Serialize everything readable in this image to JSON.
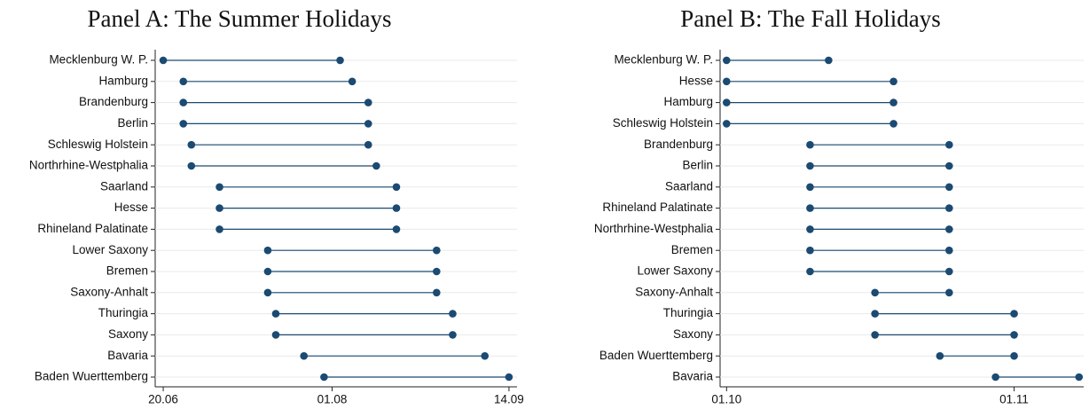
{
  "chart_data": [
    {
      "type": "dumbbell",
      "title": "Panel A: The Summer Holidays",
      "categories": [
        "Mecklenburg W. P.",
        "Hamburg",
        "Brandenburg",
        "Berlin",
        "Schleswig Holstein",
        "Northrhine-Westphalia",
        "Saarland",
        "Hesse",
        "Rhineland Palatinate",
        "Lower Saxony",
        "Bremen",
        "Saxony-Anhalt",
        "Thuringia",
        "Saxony",
        "Bavaria",
        "Baden Wuerttemberg"
      ],
      "start": [
        171,
        176,
        176,
        176,
        178,
        178,
        185,
        185,
        185,
        197,
        197,
        197,
        199,
        199,
        206,
        211
      ],
      "end": [
        215,
        218,
        222,
        222,
        222,
        224,
        229,
        229,
        229,
        239,
        239,
        239,
        243,
        243,
        251,
        257
      ],
      "color": "#1b4a72",
      "xlim": [
        169,
        259
      ],
      "xticks": [
        {
          "value": 171,
          "label": "20.06"
        },
        {
          "value": 213,
          "label": "01.08"
        },
        {
          "value": 257,
          "label": "14.09"
        }
      ],
      "grid": true
    },
    {
      "type": "dumbbell",
      "title": "Panel B: The Fall Holidays",
      "categories": [
        "Mecklenburg W. P.",
        "Hesse",
        "Hamburg",
        "Schleswig Holstein",
        "Brandenburg",
        "Berlin",
        "Saarland",
        "Rhineland Palatinate",
        "Northrhine-Westphalia",
        "Bremen",
        "Lower Saxony",
        "Saxony-Anhalt",
        "Thuringia",
        "Saxony",
        "Baden Wuerttemberg",
        "Bavaria"
      ],
      "start": [
        274,
        274,
        274,
        274,
        283,
        283,
        283,
        283,
        283,
        283,
        283,
        290,
        290,
        290,
        297,
        303
      ],
      "end": [
        285,
        292,
        292,
        292,
        298,
        298,
        298,
        298,
        298,
        298,
        298,
        298,
        305,
        305,
        305,
        312
      ],
      "color": "#1b4a72",
      "xlim": [
        273.3,
        312.5
      ],
      "xticks": [
        {
          "value": 274,
          "label": "01.10"
        },
        {
          "value": 305,
          "label": "01.11"
        }
      ],
      "grid": true
    }
  ]
}
